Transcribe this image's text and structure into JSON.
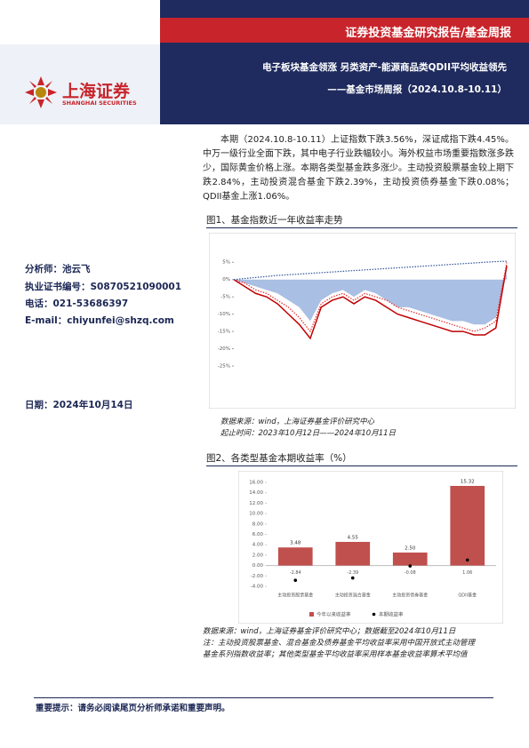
{
  "header": {
    "report_type": "证券投资基金研究报告/基金周报",
    "title": "电子板块基金领涨 另类资产-能源商品类QDII平均收益领先",
    "subtitle": "——基金市场周报（2024.10.8-10.11）",
    "logo_cn": "上海证券",
    "logo_en": "SHANGHAI SECURITIES"
  },
  "analyst": [
    "分析师：池云飞",
    "执业证书编号：S0870521090001",
    "电话：021-53686397",
    "E-mail：chiyunfei@shzq.com"
  ],
  "date": "日期：2024年10月14日",
  "summary": "本期（2024.10.8-10.11）上证指数下跌3.56%，深证成指下跌4.45%。中万一级行业全面下跌，其中电子行业跌幅较小。海外权益市场重要指数涨多跌少，国际黄金价格上涨。本期各类型基金跌多涨少。主动投资股票基金较上期下跌2.84%，主动投资混合基金下跌2.39%，主动投资债券基金下跌0.08%；QDII基金上涨1.06%。",
  "figure1": {
    "caption": "图1、基金指数近一年收益率走势",
    "source": "数据来源：wind，上海证券基金评价研究中心",
    "period": "起止时间：2023年10月12日——2024年10月11日"
  },
  "figure2": {
    "caption": "图2、各类型基金本期收益率（%）",
    "notes": [
      "数据来源：wind，上海证券基金评价研究中心；数据截至2024年10月11日",
      "注：主动投资股票基金、混合基金及债券基金平均收益率采用中国开放式主动管理",
      "基金系列指数收益率；其他类型基金平均收益率采用样本基金收益率算术平均值"
    ]
  },
  "footer": "重要提示：请务必阅读尾页分析师承诺和重要声明。",
  "chart_data": [
    {
      "type": "line",
      "ylim": [
        -25,
        12
      ],
      "yticks": [
        {
          "value": 5,
          "label": "5%"
        },
        {
          "value": 0,
          "label": "0%"
        },
        {
          "value": -5,
          "label": "-5%"
        },
        {
          "value": -10,
          "label": "-10%"
        },
        {
          "value": -15,
          "label": "-15%"
        },
        {
          "value": -20,
          "label": "-20%"
        },
        {
          "value": -25,
          "label": "-25%"
        }
      ],
      "grid": false,
      "series": [
        {
          "color": "#a9bfe3",
          "style": "area",
          "values": [
            0,
            -1,
            -2,
            -3,
            -4,
            -6,
            -8,
            -12,
            -6,
            -4,
            -3,
            -5,
            -3,
            -4,
            -6,
            -8,
            -8,
            -9,
            -10,
            -11,
            -12,
            -12,
            -13,
            -13,
            -11,
            2
          ]
        },
        {
          "color": "#c00000",
          "style": "solid",
          "values": [
            0,
            -2,
            -4,
            -5,
            -7,
            -10,
            -13,
            -17,
            -8,
            -6,
            -5,
            -7,
            -5,
            -6,
            -8,
            -10,
            -11,
            -12,
            -13,
            -14,
            -15,
            -15,
            -16,
            -16,
            -14,
            4
          ]
        },
        {
          "color": "#e03030",
          "style": "dotted",
          "values": [
            0,
            -1,
            -3,
            -4,
            -6,
            -8,
            -11,
            -15,
            -7,
            -5,
            -4,
            -6,
            -4,
            -5,
            -6,
            -8,
            -9,
            -10,
            -11,
            -12,
            -13,
            -14,
            -15,
            -14,
            -12,
            5
          ]
        },
        {
          "color": "#2f5597",
          "style": "dotted",
          "values": [
            0,
            0.3,
            0.6,
            0.9,
            1.2,
            1.4,
            1.6,
            1.8,
            2,
            2.2,
            2.4,
            2.6,
            2.8,
            3,
            3.2,
            3.4,
            3.6,
            3.8,
            4,
            4.2,
            4.4,
            4.6,
            4.8,
            5,
            5.2,
            5.3
          ]
        }
      ]
    },
    {
      "type": "bar",
      "categories": [
        "主动投资股票基金",
        "主动投资混合基金",
        "主动投资债券基金",
        "QDII基金"
      ],
      "ylim": [
        -4,
        16
      ],
      "yticks": [
        {
          "value": 16,
          "label": "16.00"
        },
        {
          "value": 14,
          "label": "14.00"
        },
        {
          "value": 12,
          "label": "12.00"
        },
        {
          "value": 10,
          "label": "10.00"
        },
        {
          "value": 8,
          "label": "8.00"
        },
        {
          "value": 6,
          "label": "6.00"
        },
        {
          "value": 4,
          "label": "4.00"
        },
        {
          "value": 2,
          "label": "2.00"
        },
        {
          "value": 0,
          "label": "0.00"
        },
        {
          "value": -2,
          "label": "-2.00"
        },
        {
          "value": -4,
          "label": "-4.00"
        }
      ],
      "series": [
        {
          "name": "今年以来收益率",
          "color": "#c0504d",
          "marker": "bar",
          "values": [
            3.48,
            4.55,
            2.5,
            15.32
          ],
          "value_labels": [
            "3.48",
            "4.55",
            "2.50",
            "15.32"
          ]
        },
        {
          "name": "本期收益率",
          "color": "#000000",
          "marker": "dot",
          "values": [
            -2.84,
            -2.39,
            -0.08,
            1.06
          ]
        }
      ]
    }
  ]
}
